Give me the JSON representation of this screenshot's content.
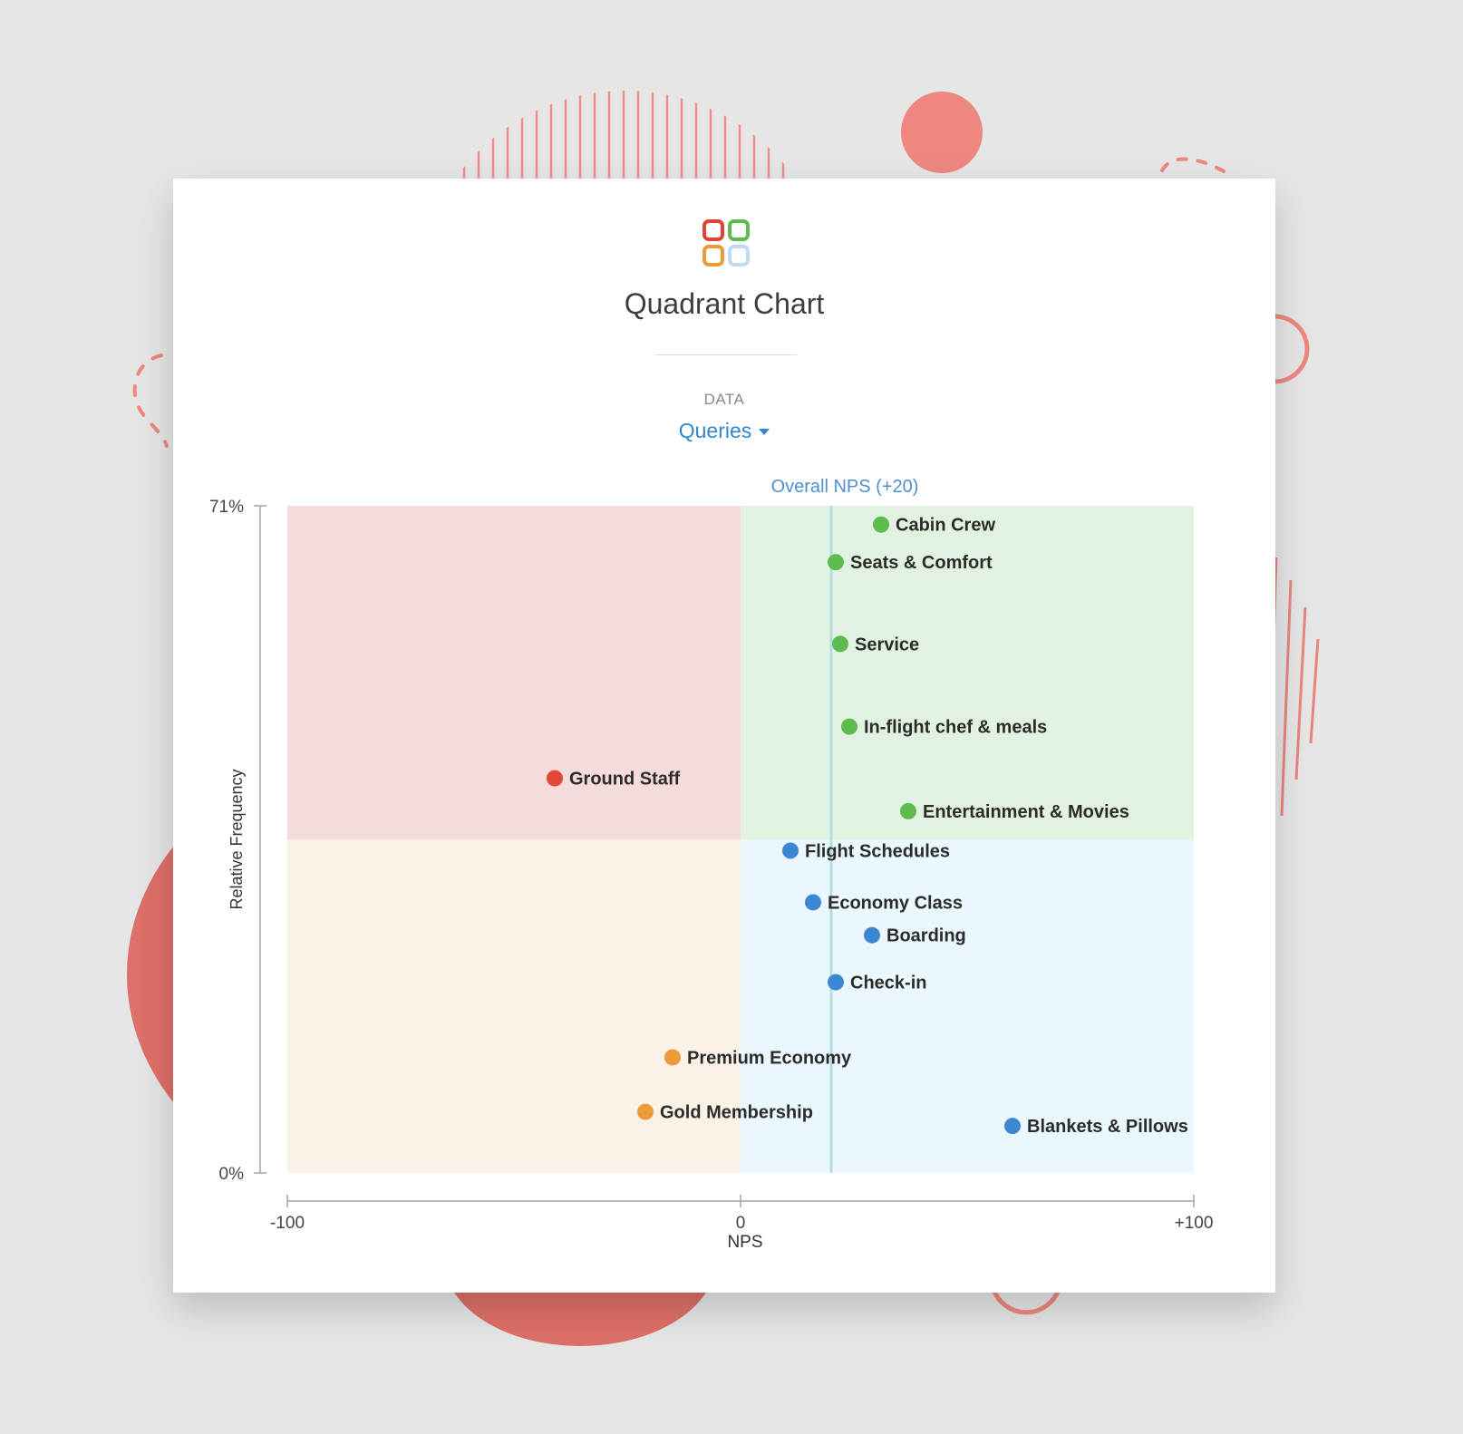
{
  "app": {
    "title": "Quadrant Chart",
    "data_label": "DATA",
    "dropdown_value": "Queries"
  },
  "colors": {
    "red": "#e0493a",
    "green": "#5cbc4f",
    "blue": "#3b87d3",
    "orange": "#ec9a3a",
    "accent_blue": "#2f86c8"
  },
  "chart_data": {
    "type": "scatter",
    "title": "Quadrant Chart",
    "xlabel": "NPS",
    "ylabel": "Relative Frequency",
    "xlim": [
      -100,
      100
    ],
    "ylim": [
      0,
      71
    ],
    "x_ticks": [
      {
        "value": -100,
        "label": "-100"
      },
      {
        "value": 0,
        "label": "0"
      },
      {
        "value": 100,
        "label": "+100"
      }
    ],
    "y_ticks": [
      {
        "value": 71,
        "label": "71%"
      },
      {
        "value": 0,
        "label": "0%"
      }
    ],
    "x_split": 0,
    "y_split": 35.5,
    "reference_line": {
      "value": 20,
      "label": "Overall NPS (+20)"
    },
    "quadrant_colors": {
      "top_left": "#f6dbdc",
      "top_right": "#e1f2e1",
      "bottom_left": "#faf2e7",
      "bottom_right": "#eaf7fd"
    },
    "points": [
      {
        "label": "Cabin Crew",
        "x": 31,
        "y": 69,
        "color": "green"
      },
      {
        "label": "Seats & Comfort",
        "x": 21,
        "y": 65,
        "color": "green"
      },
      {
        "label": "Service",
        "x": 22,
        "y": 56.3,
        "color": "green"
      },
      {
        "label": "In-flight chef & meals",
        "x": 24,
        "y": 47.5,
        "color": "green"
      },
      {
        "label": "Ground Staff",
        "x": -41,
        "y": 42,
        "color": "red"
      },
      {
        "label": "Entertainment & Movies",
        "x": 37,
        "y": 38.5,
        "color": "green"
      },
      {
        "label": "Flight Schedules",
        "x": 11,
        "y": 34.3,
        "color": "blue"
      },
      {
        "label": "Economy Class",
        "x": 16,
        "y": 28.8,
        "color": "blue"
      },
      {
        "label": "Boarding",
        "x": 29,
        "y": 25.3,
        "color": "blue"
      },
      {
        "label": "Check-in",
        "x": 21,
        "y": 20.3,
        "color": "blue"
      },
      {
        "label": "Premium Economy",
        "x": -15,
        "y": 12.3,
        "color": "orange"
      },
      {
        "label": "Gold Membership",
        "x": -21,
        "y": 6.5,
        "color": "orange"
      },
      {
        "label": "Blankets & Pillows",
        "x": 60,
        "y": 5,
        "color": "blue"
      }
    ]
  }
}
